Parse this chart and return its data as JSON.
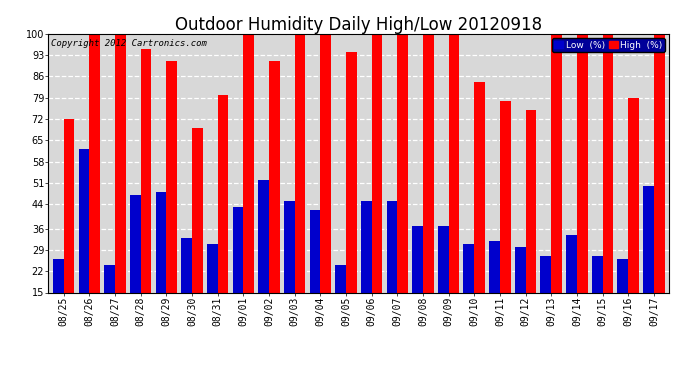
{
  "title": "Outdoor Humidity Daily High/Low 20120918",
  "copyright": "Copyright 2012 Cartronics.com",
  "categories": [
    "08/25",
    "08/26",
    "08/27",
    "08/28",
    "08/29",
    "08/30",
    "08/31",
    "09/01",
    "09/02",
    "09/03",
    "09/04",
    "09/05",
    "09/06",
    "09/07",
    "09/08",
    "09/09",
    "09/10",
    "09/11",
    "09/12",
    "09/13",
    "09/14",
    "09/15",
    "09/16",
    "09/17"
  ],
  "high_values": [
    72,
    100,
    100,
    95,
    91,
    69,
    80,
    100,
    91,
    100,
    100,
    94,
    100,
    100,
    100,
    100,
    84,
    78,
    75,
    100,
    100,
    100,
    79,
    100
  ],
  "low_values": [
    26,
    62,
    24,
    47,
    48,
    33,
    31,
    43,
    52,
    45,
    42,
    24,
    45,
    45,
    37,
    37,
    31,
    32,
    30,
    27,
    34,
    27,
    26,
    50
  ],
  "high_color": "#ff0000",
  "low_color": "#0000cc",
  "bg_color": "#ffffff",
  "plot_bg_color": "#d8d8d8",
  "grid_color": "#ffffff",
  "ylim_min": 15,
  "ylim_max": 100,
  "yticks": [
    15,
    22,
    29,
    36,
    44,
    51,
    58,
    65,
    72,
    79,
    86,
    93,
    100
  ],
  "legend_low_label": "Low  (%)",
  "legend_high_label": "High  (%)",
  "title_fontsize": 12,
  "copyright_fontsize": 6.5,
  "tick_fontsize": 7,
  "bar_width": 0.42,
  "legend_bg": "#000099"
}
